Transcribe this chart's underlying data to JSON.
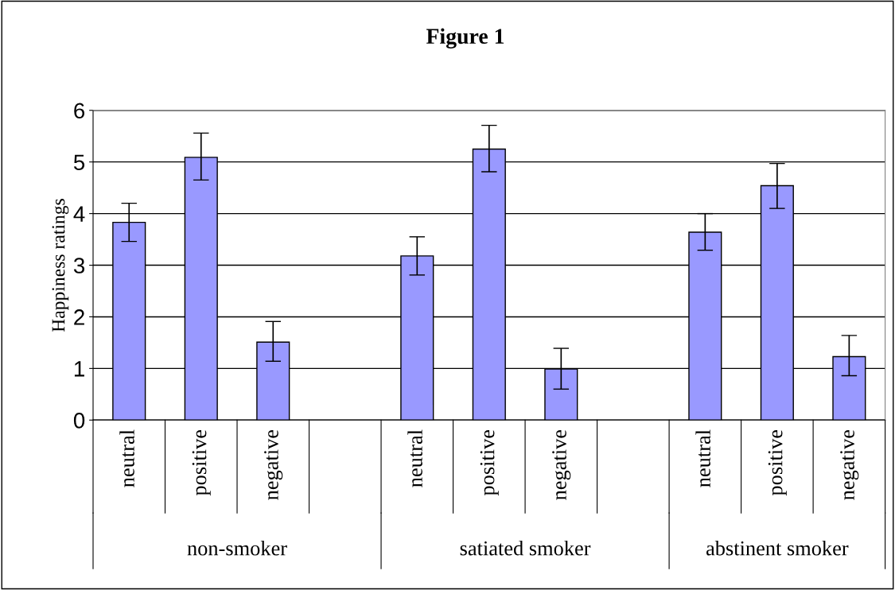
{
  "chart_data": {
    "type": "bar",
    "title": "Figure 1",
    "ylabel": "Happiness ratings",
    "categories": [
      "neutral",
      "positive",
      "negative",
      null,
      "neutral",
      "positive",
      "negative",
      null,
      "neutral",
      "positive",
      "negative"
    ],
    "values": [
      3.83,
      5.09,
      1.51,
      null,
      3.18,
      5.25,
      0.99,
      null,
      3.64,
      4.54,
      1.23
    ],
    "errors": [
      [
        3.46,
        4.2
      ],
      [
        4.65,
        5.56
      ],
      [
        1.14,
        1.91
      ],
      null,
      [
        2.81,
        3.55
      ],
      [
        4.81,
        5.71
      ],
      [
        0.6,
        1.39
      ],
      null,
      [
        3.29,
        4.0
      ],
      [
        4.1,
        4.97
      ],
      [
        0.86,
        1.64
      ]
    ],
    "color": "#9999ff",
    "annotations": [
      "non-smoker",
      "satiated smoker",
      "abstinent smoker"
    ],
    "ylim": [
      0,
      6
    ],
    "yticks": [
      0,
      1,
      2,
      3,
      4,
      5,
      6
    ],
    "grid": "y",
    "legend": false
  }
}
